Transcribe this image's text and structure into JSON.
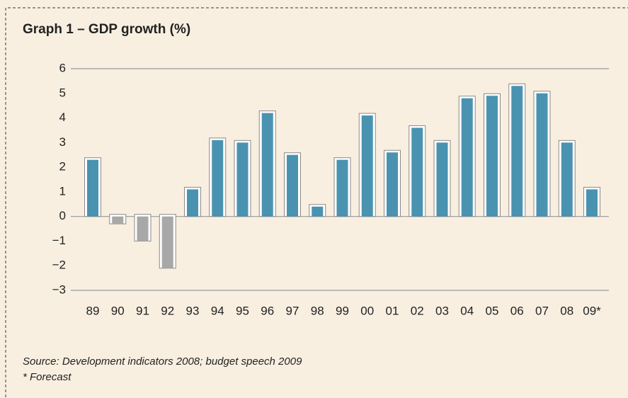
{
  "chart_data": {
    "type": "bar",
    "title": "Graph 1 – GDP growth (%)",
    "categories": [
      "89",
      "90",
      "91",
      "92",
      "93",
      "94",
      "95",
      "96",
      "97",
      "98",
      "99",
      "00",
      "01",
      "02",
      "03",
      "04",
      "05",
      "06",
      "07",
      "08",
      "09*"
    ],
    "values": [
      2.3,
      -0.3,
      -1.0,
      -2.1,
      1.1,
      3.1,
      3.0,
      4.2,
      2.5,
      0.4,
      2.3,
      4.1,
      2.6,
      3.6,
      3.0,
      4.8,
      4.9,
      5.3,
      5.0,
      3.0,
      1.1
    ],
    "color": "#4a93b0",
    "negative_color": "#a8a8a8",
    "ylim": [
      -3,
      6
    ],
    "yticks": [
      {
        "value": -3,
        "label": "−3"
      },
      {
        "value": -2,
        "label": "−2"
      },
      {
        "value": -1,
        "label": "−1"
      },
      0,
      1,
      2,
      3,
      4,
      5,
      6
    ],
    "source": "Source: Development indicators 2008; budget speech 2009",
    "note": "* Forecast"
  }
}
